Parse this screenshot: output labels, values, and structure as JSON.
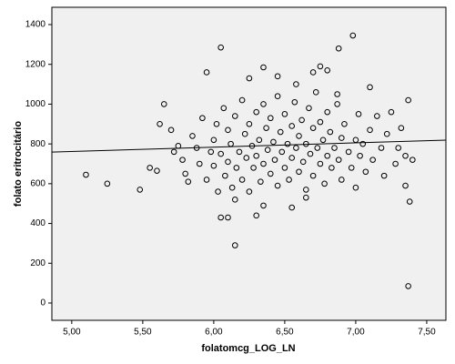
{
  "chart_data": {
    "type": "scatter",
    "x_label": "folatomcg_LOG_LN",
    "y_label": "folato eritrocitário",
    "xlim": [
      4.86,
      7.635
    ],
    "ylim": [
      -87,
      1487
    ],
    "xticks": [
      {
        "value": 5,
        "label": "5,00"
      },
      {
        "value": 5.5,
        "label": "5,50"
      },
      {
        "value": 6,
        "label": "6,00"
      },
      {
        "value": 6.5,
        "label": "6,50"
      },
      {
        "value": 7,
        "label": "7,00"
      },
      {
        "value": 7.5,
        "label": "7,50"
      }
    ],
    "yticks": [
      0,
      200,
      400,
      600,
      800,
      1000,
      1200,
      1400
    ],
    "background": "#f0f0f0",
    "color": "#000000",
    "fit": {
      "intercept": 654,
      "slope": 21.6
    },
    "x": [
      5.1,
      5.25,
      5.48,
      5.55,
      5.6,
      5.62,
      5.65,
      5.7,
      6.05,
      6.98,
      6.88,
      6.15,
      6.05,
      6.1,
      7.37,
      7.38,
      7.35,
      7.4,
      7.37,
      7.1,
      5.95,
      6.35,
      6.7,
      6.75,
      6.8,
      6.87,
      6.3,
      6.35,
      6.15,
      5.72,
      5.75,
      5.78,
      5.8,
      5.82,
      5.85,
      5.88,
      5.9,
      5.92,
      5.95,
      5.98,
      6.0,
      6.0,
      6.02,
      6.03,
      6.05,
      6.07,
      6.08,
      6.1,
      6.1,
      6.12,
      6.13,
      6.15,
      6.16,
      6.18,
      6.2,
      6.2,
      6.22,
      6.23,
      6.25,
      6.25,
      6.27,
      6.28,
      6.3,
      6.3,
      6.32,
      6.33,
      6.35,
      6.35,
      6.37,
      6.38,
      6.4,
      6.4,
      6.42,
      6.43,
      6.45,
      6.45,
      6.47,
      6.48,
      6.5,
      6.5,
      6.52,
      6.53,
      6.55,
      6.55,
      6.57,
      6.58,
      6.6,
      6.6,
      6.62,
      6.63,
      6.65,
      6.65,
      6.67,
      6.68,
      6.7,
      6.7,
      6.72,
      6.73,
      6.75,
      6.75,
      6.77,
      6.78,
      6.8,
      6.8,
      6.82,
      6.83,
      6.85,
      6.87,
      6.88,
      6.9,
      6.9,
      6.92,
      6.95,
      6.97,
      7.0,
      7.0,
      7.02,
      7.03,
      7.05,
      7.07,
      7.1,
      7.12,
      7.15,
      7.18,
      7.2,
      7.22,
      7.25,
      7.28,
      7.3,
      7.32,
      7.35,
      6.55,
      6.65,
      6.45,
      6.25,
      6.58
    ],
    "values": [
      645,
      600,
      570,
      680,
      665,
      900,
      1000,
      870,
      1285,
      1345,
      1280,
      290,
      430,
      430,
      85,
      510,
      590,
      720,
      1020,
      1085,
      1160,
      1185,
      1160,
      1190,
      1170,
      1050,
      440,
      490,
      520,
      760,
      790,
      720,
      650,
      610,
      840,
      780,
      700,
      930,
      620,
      760,
      820,
      690,
      900,
      560,
      750,
      980,
      640,
      870,
      710,
      800,
      580,
      940,
      680,
      760,
      1020,
      620,
      850,
      730,
      900,
      560,
      790,
      680,
      960,
      740,
      820,
      610,
      1000,
      700,
      880,
      770,
      650,
      930,
      810,
      720,
      1040,
      590,
      860,
      760,
      680,
      950,
      800,
      620,
      890,
      730,
      1010,
      780,
      660,
      840,
      920,
      710,
      570,
      800,
      980,
      750,
      880,
      640,
      1060,
      780,
      700,
      910,
      820,
      600,
      960,
      740,
      860,
      680,
      780,
      1000,
      720,
      830,
      620,
      900,
      760,
      680,
      820,
      580,
      950,
      740,
      800,
      660,
      870,
      720,
      940,
      780,
      640,
      850,
      960,
      700,
      780,
      880,
      740,
      480,
      530,
      1140,
      1130,
      1100
    ]
  }
}
